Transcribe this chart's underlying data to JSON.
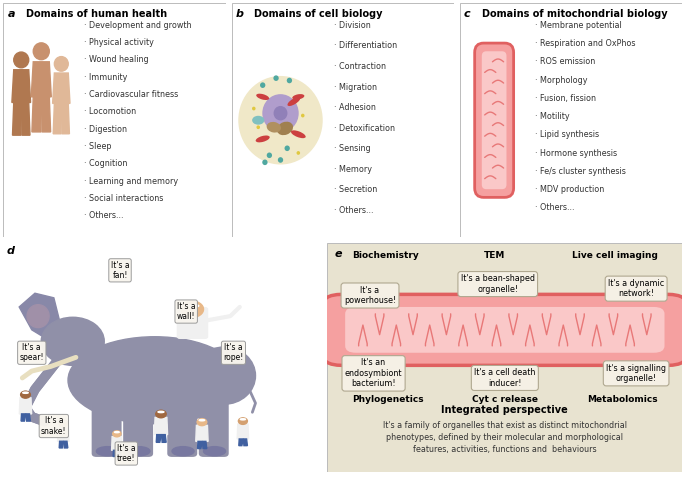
{
  "panel_a_title": "Domains of human health",
  "panel_b_title": "Domains of cell biology",
  "panel_c_title": "Domains of mitochondrial biology",
  "panel_a_items": [
    "Development and growth",
    "Physical activity",
    "Wound healing",
    "Immunity",
    "Cardiovascular fitness",
    "Locomotion",
    "Digestion",
    "Sleep",
    "Cognition",
    "Learning and memory",
    "Social interactions",
    "Others..."
  ],
  "panel_b_items": [
    "Division",
    "Differentiation",
    "Contraction",
    "Migration",
    "Adhesion",
    "Detoxification",
    "Sensing",
    "Memory",
    "Secretion",
    "Others..."
  ],
  "panel_c_items": [
    "Membrane potential",
    "Respiration and OxPhos",
    "ROS emission",
    "Morphology",
    "Fusion, fission",
    "Motility",
    "Lipid synthesis",
    "Hormone synthesis",
    "Fe/s cluster synthesis",
    "MDV production",
    "Others..."
  ],
  "panel_e_integrated_title": "Integrated perspective",
  "panel_e_integrated_text": "It's a family of organelles that exist as distinct mitochondrial\nphenotypes, defined by their molecular and morphological\nfeatures, activities, functions and  behaviours",
  "bg_color_e": "#e8e3d0",
  "human_color1": "#c8916e",
  "human_color2": "#b07850",
  "human_color3": "#e0b898",
  "mito_outer": "#e06060",
  "mito_fill": "#f5a0a0",
  "mito_inner": "#fac8c8",
  "mito_cristae": "#e87878",
  "cell_outer": "#f0e8c8",
  "cell_border": "#c8b870",
  "nucleus_color": "#b09dcc",
  "nucleus_border": "#8878aa",
  "bubble_bg": "#f5f0e8"
}
